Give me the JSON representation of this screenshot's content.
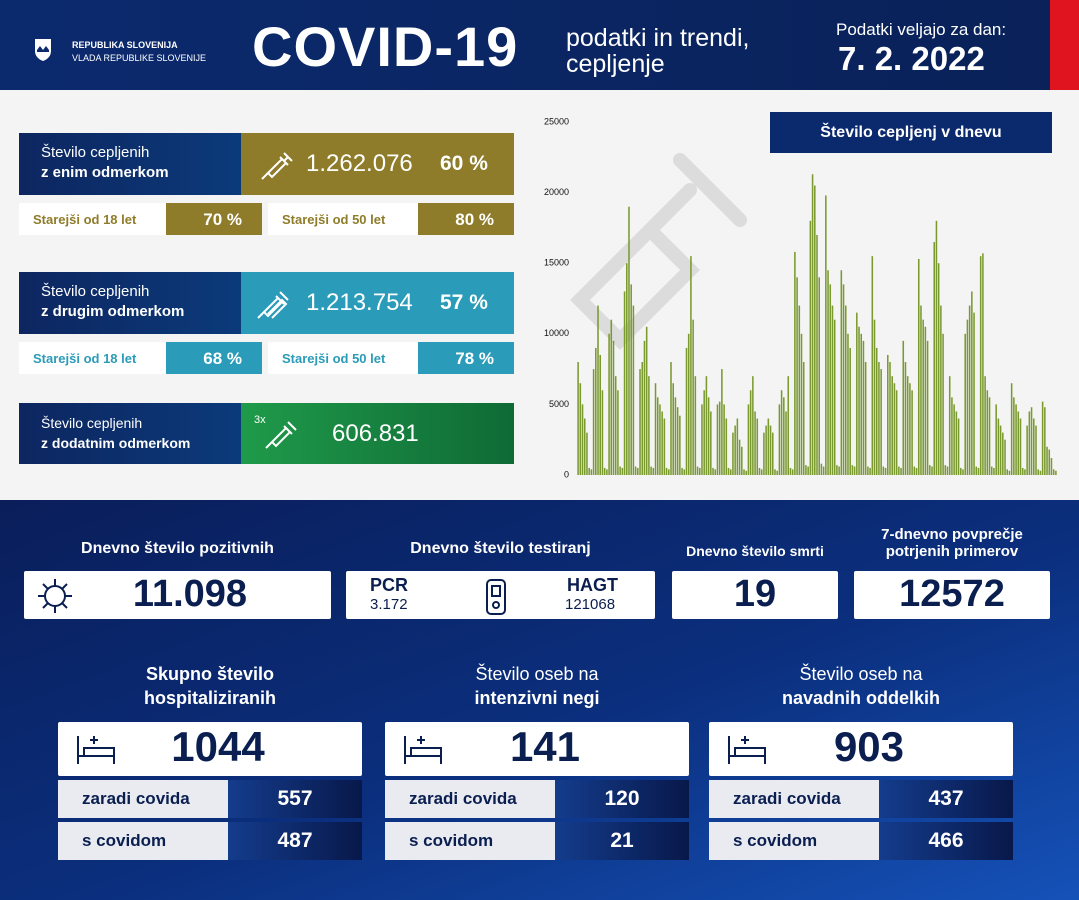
{
  "header": {
    "org_line1": "REPUBLIKA SLOVENIJA",
    "org_line2": "VLADA REPUBLIKE SLOVENIJE",
    "title": "COVID-19",
    "subtitle_line1": "podatki in trendi,",
    "subtitle_line2": "cepljenje",
    "date_label": "Podatki veljajo za dan:",
    "date": "7. 2. 2022"
  },
  "vaccination": {
    "first_dose": {
      "label_line1": "Število cepljenih",
      "label_line2": "z enim odmerkom",
      "count": "1.262.076",
      "percent": "60 %",
      "age_groups": [
        {
          "label": "Starejši od 18 let",
          "percent": "70 %"
        },
        {
          "label": "Starejši od 50 let",
          "percent": "80 %"
        }
      ]
    },
    "second_dose": {
      "label_line1": "Število cepljenih",
      "label_line2": "z drugim odmerkom",
      "count": "1.213.754",
      "percent": "57 %",
      "age_groups": [
        {
          "label": "Starejši od 18 let",
          "percent": "68 %"
        },
        {
          "label": "Starejši od 50 let",
          "percent": "78 %"
        }
      ]
    },
    "booster": {
      "label_line1": "Število cepljenih",
      "label_line2": "z dodatnim odmerkom",
      "icon_text": "3x",
      "count": "606.831"
    }
  },
  "chart_data": {
    "type": "bar",
    "title": "Število cepljenj v dnevu",
    "color": "#7a9a30",
    "ylim": [
      0,
      25000
    ],
    "yticks": [
      0,
      5000,
      10000,
      15000,
      20000,
      25000
    ],
    "grid": false,
    "values": [
      8000,
      6500,
      5000,
      4000,
      3000,
      500,
      400,
      7500,
      9000,
      12000,
      8500,
      6000,
      500,
      400,
      10000,
      11000,
      9500,
      7000,
      6000,
      600,
      500,
      13000,
      15000,
      19000,
      13500,
      12000,
      600,
      500,
      7500,
      8000,
      9500,
      10500,
      7000,
      600,
      500,
      6500,
      5500,
      5000,
      4500,
      4000,
      500,
      400,
      8000,
      6500,
      5500,
      4800,
      4200,
      500,
      400,
      9000,
      10000,
      15500,
      11000,
      7000,
      600,
      500,
      5000,
      6000,
      7000,
      5500,
      4500,
      500,
      400,
      5000,
      5200,
      7500,
      5000,
      4000,
      500,
      400,
      3000,
      3500,
      4000,
      2500,
      2000,
      400,
      300,
      5000,
      6000,
      7000,
      4500,
      4000,
      500,
      400,
      3000,
      3500,
      4000,
      3500,
      3000,
      400,
      300,
      5000,
      6000,
      5500,
      4500,
      7000,
      500,
      400,
      15800,
      14000,
      12000,
      10000,
      8000,
      700,
      600,
      18000,
      21300,
      20500,
      17000,
      14000,
      800,
      600,
      19800,
      14500,
      13500,
      12000,
      11000,
      700,
      600,
      14500,
      13500,
      12000,
      10000,
      9000,
      700,
      600,
      11500,
      10500,
      10000,
      9500,
      8000,
      600,
      500,
      15500,
      11000,
      9000,
      8000,
      7500,
      600,
      500,
      8500,
      8000,
      7000,
      6500,
      6000,
      600,
      500,
      9500,
      8000,
      7000,
      6500,
      6000,
      600,
      500,
      15300,
      12000,
      11000,
      10500,
      9500,
      700,
      600,
      16500,
      18000,
      15000,
      12000,
      10000,
      700,
      600,
      7000,
      5500,
      5000,
      4500,
      4000,
      500,
      400,
      10000,
      11000,
      12000,
      13000,
      11500,
      600,
      500,
      15500,
      15700,
      7000,
      6000,
      5500,
      600,
      500,
      5000,
      4000,
      3500,
      3000,
      2500,
      400,
      300,
      6500,
      5500,
      5000,
      4500,
      4000,
      500,
      400,
      3500,
      4500,
      4800,
      4000,
      3500,
      400,
      300,
      5200,
      4800,
      2000,
      1800,
      1200,
      400,
      300
    ]
  },
  "daily": {
    "positive": {
      "title": "Dnevno število pozitivnih",
      "value": "11.098"
    },
    "tests": {
      "title": "Dnevno število testiranj",
      "pcr_label": "PCR",
      "pcr_value": "3.172",
      "hagt_label": "HAGT",
      "hagt_value": "121068"
    },
    "deaths": {
      "title": "Dnevno število smrti",
      "value": "19"
    },
    "average": {
      "title_line1": "7-dnevno povprečje",
      "title_line2": "potrjenih primerov",
      "value": "12572"
    }
  },
  "hospital": [
    {
      "title_line1": "Skupno število",
      "title_line2": "hospitaliziranih",
      "total": "1044",
      "rows": [
        {
          "label": "zaradi covida",
          "value": "557"
        },
        {
          "label": "s covidom",
          "value": "487"
        }
      ]
    },
    {
      "title_line1": "Število oseb na",
      "title_line2": "intenzivni negi",
      "total": "141",
      "rows": [
        {
          "label": "zaradi covida",
          "value": "120"
        },
        {
          "label": "s covidom",
          "value": "21"
        }
      ]
    },
    {
      "title_line1": "Število oseb na",
      "title_line2": "navadnih oddelkih",
      "total": "903",
      "rows": [
        {
          "label": "zaradi covida",
          "value": "437"
        },
        {
          "label": "s covidom",
          "value": "466"
        }
      ]
    }
  ]
}
